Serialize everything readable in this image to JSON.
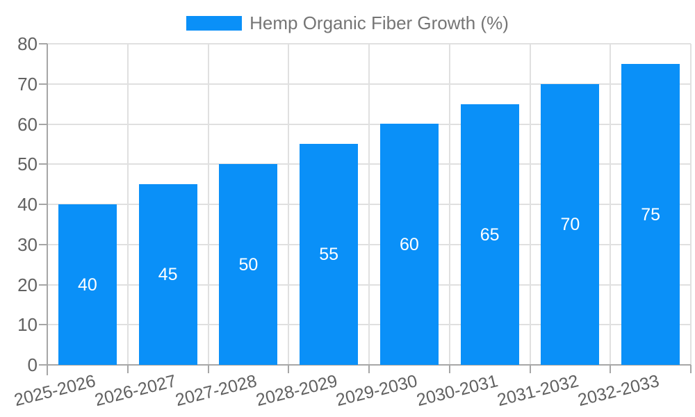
{
  "chart_data": {
    "type": "bar",
    "title": "Hemp Organic Fiber Growth (%)",
    "categories": [
      "2025-2026",
      "2026-2027",
      "2027-2028",
      "2028-2029",
      "2029-2030",
      "2030-2031",
      "2031-2032",
      "2032-2033"
    ],
    "series": [
      {
        "name": "Hemp Organic Fiber Growth (%)",
        "values": [
          40,
          45,
          50,
          55,
          60,
          65,
          70,
          75
        ]
      }
    ],
    "value_labels": [
      "40",
      "45",
      "50",
      "55",
      "60",
      "65",
      "70",
      "75"
    ],
    "xlabel": "",
    "ylabel": "",
    "ylim": [
      0,
      80
    ],
    "ytick_step": 10,
    "ytick_labels": [
      "0",
      "10",
      "20",
      "30",
      "40",
      "50",
      "60",
      "70",
      "80"
    ],
    "grid": true,
    "legend_position": "top",
    "colors": {
      "bar": "#0A90F8",
      "value_label": "#FFFFFF",
      "axis_line": "#A6A6A6",
      "gridline": "#E0E0E0",
      "tick_text": "#616161",
      "legend_text": "#757575",
      "background": "#FFFFFF"
    }
  }
}
